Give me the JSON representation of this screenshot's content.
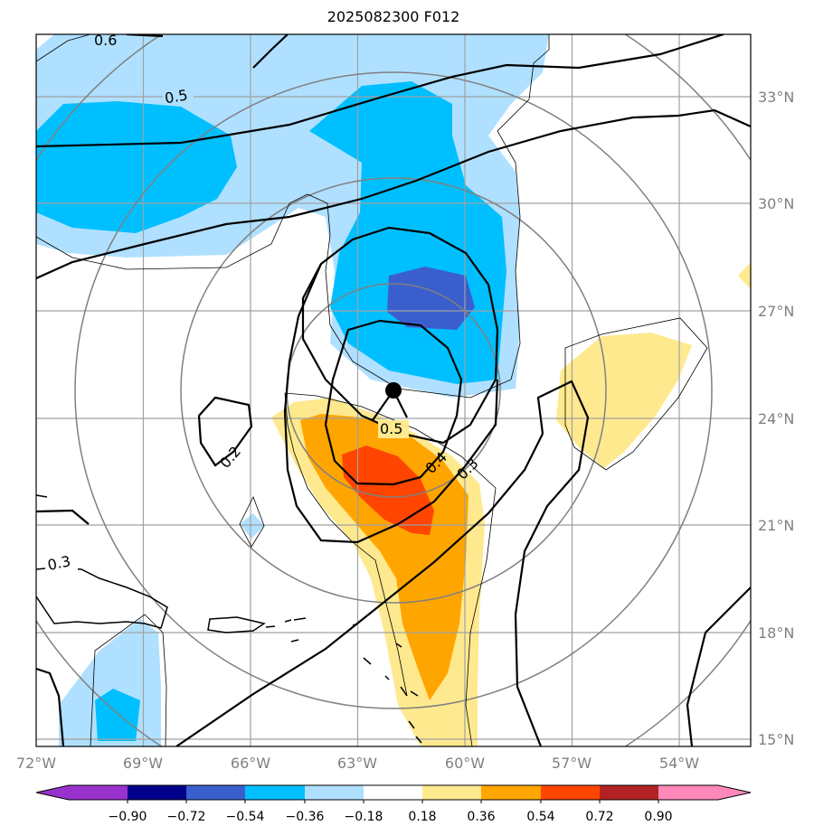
{
  "title": "2025082300 F012",
  "map": {
    "lon_range": [
      -72,
      -52
    ],
    "lat_range": [
      15,
      35
    ],
    "lon_ticks": [
      {
        "lon": -72,
        "label": "72°W"
      },
      {
        "lon": -69,
        "label": "69°W"
      },
      {
        "lon": -66,
        "label": "66°W"
      },
      {
        "lon": -63,
        "label": "63°W"
      },
      {
        "lon": -60,
        "label": "60°W"
      },
      {
        "lon": -57,
        "label": "57°W"
      },
      {
        "lon": -54,
        "label": "54°W"
      }
    ],
    "lat_ticks": [
      {
        "lat": 15,
        "label": "15°N"
      },
      {
        "lat": 18,
        "label": "18°N"
      },
      {
        "lat": 21,
        "label": "21°N"
      },
      {
        "lat": 24,
        "label": "24°N"
      },
      {
        "lat": 27,
        "label": "27°N"
      },
      {
        "lat": 30,
        "label": "30°N"
      },
      {
        "lat": 33,
        "label": "33°N"
      }
    ],
    "storm_center": {
      "lon": -62,
      "lat": 24.8
    },
    "contour_labels": [
      "0.6",
      "0.5",
      "0.5",
      "0.4",
      "0.3",
      "0.2",
      "0.3"
    ]
  },
  "colorbar": {
    "ticks": [
      "−0.90",
      "−0.72",
      "−0.54",
      "−0.36",
      "−0.18",
      "0.18",
      "0.36",
      "0.54",
      "0.72",
      "0.90"
    ],
    "colors": [
      "#9932cc",
      "#00008b",
      "#3a5fcd",
      "#00bfff",
      "#b0e0ff",
      "#ffffff",
      "#ffe98f",
      "#ffa500",
      "#ff4500",
      "#b22222",
      "#ff88bb"
    ],
    "underflow_color": "#9932cc",
    "overflow_color": "#ff88bb"
  }
}
